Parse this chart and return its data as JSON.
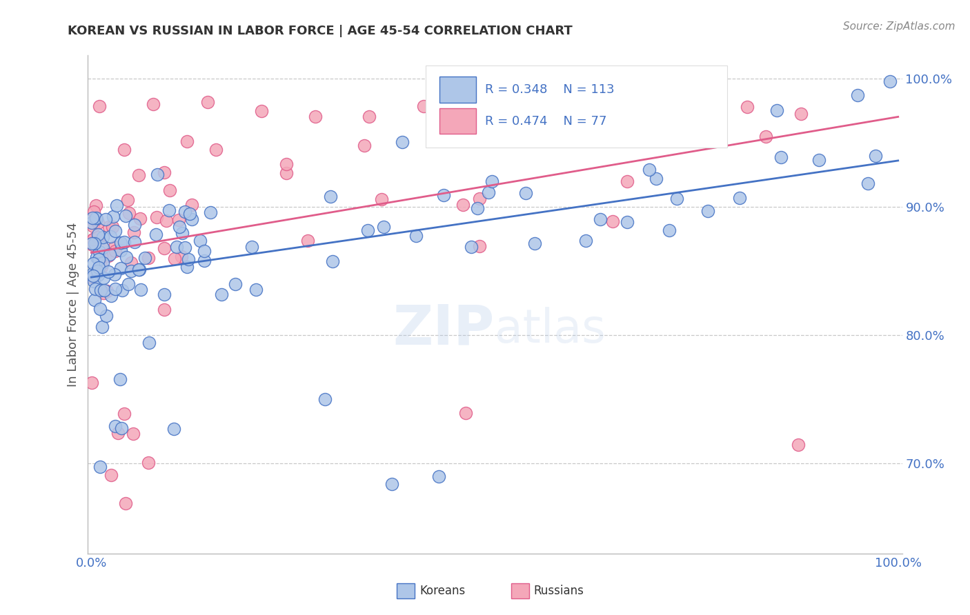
{
  "title": "KOREAN VS RUSSIAN IN LABOR FORCE | AGE 45-54 CORRELATION CHART",
  "source_text": "Source: ZipAtlas.com",
  "ylabel": "In Labor Force | Age 45-54",
  "xlim": [
    0.0,
    1.0
  ],
  "ylim": [
    0.835,
    1.015
  ],
  "x_tick_labels": [
    "0.0%",
    "100.0%"
  ],
  "y_ticks": [
    0.9,
    1.0
  ],
  "y_tick_labels_right": [
    "90.0%",
    "100.0%"
  ],
  "y_ticks_dashed": [
    0.9,
    0.8,
    0.7
  ],
  "korean_R": 0.348,
  "korean_N": 113,
  "russian_R": 0.474,
  "russian_N": 77,
  "korean_color": "#aec6e8",
  "russian_color": "#f4a7b9",
  "korean_line_color": "#4472c4",
  "russian_line_color": "#e05c8a",
  "legend_korean": "Koreans",
  "legend_russian": "Russians",
  "watermark_line1": "ZIP",
  "watermark_line2": "atlas",
  "background_color": "#ffffff",
  "grid_color": "#c8c8c8",
  "title_color": "#333333",
  "source_color": "#888888",
  "tick_label_color": "#4472c4",
  "ylabel_color": "#555555"
}
